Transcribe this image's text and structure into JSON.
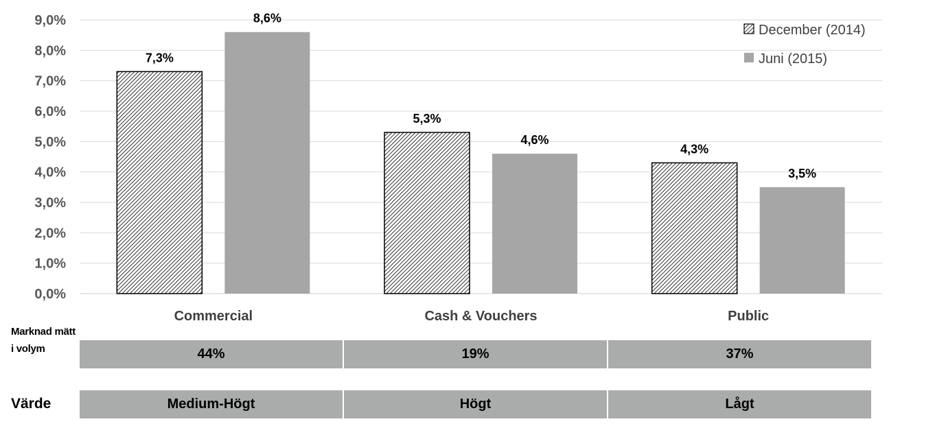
{
  "chart_data": {
    "type": "bar",
    "categories": [
      "Commercial",
      "Cash & Vouchers",
      "Public"
    ],
    "series": [
      {
        "name": "December (2014)",
        "values": [
          7.3,
          5.3,
          4.3
        ],
        "labels": [
          "7,3%",
          "5,3%",
          "4,3%"
        ],
        "pattern": "hatched",
        "color": "#000000"
      },
      {
        "name": "Juni (2015)",
        "values": [
          8.6,
          4.6,
          3.5
        ],
        "labels": [
          "8,6%",
          "4,6%",
          "3,5%"
        ],
        "pattern": "solid",
        "color": "#a6a6a6"
      }
    ],
    "ylim": [
      0,
      9
    ],
    "yticks": [
      "0,0%",
      "1,0%",
      "2,0%",
      "3,0%",
      "4,0%",
      "5,0%",
      "6,0%",
      "7,0%",
      "8,0%",
      "9,0%"
    ],
    "grid": true,
    "legend_position": "top-right"
  },
  "table": {
    "volume_label": "Marknad mätt i volym",
    "volume_values": [
      "44%",
      "19%",
      "37%"
    ],
    "value_label": "Värde",
    "value_values": [
      "Medium-Högt",
      "Högt",
      "Lågt"
    ]
  }
}
